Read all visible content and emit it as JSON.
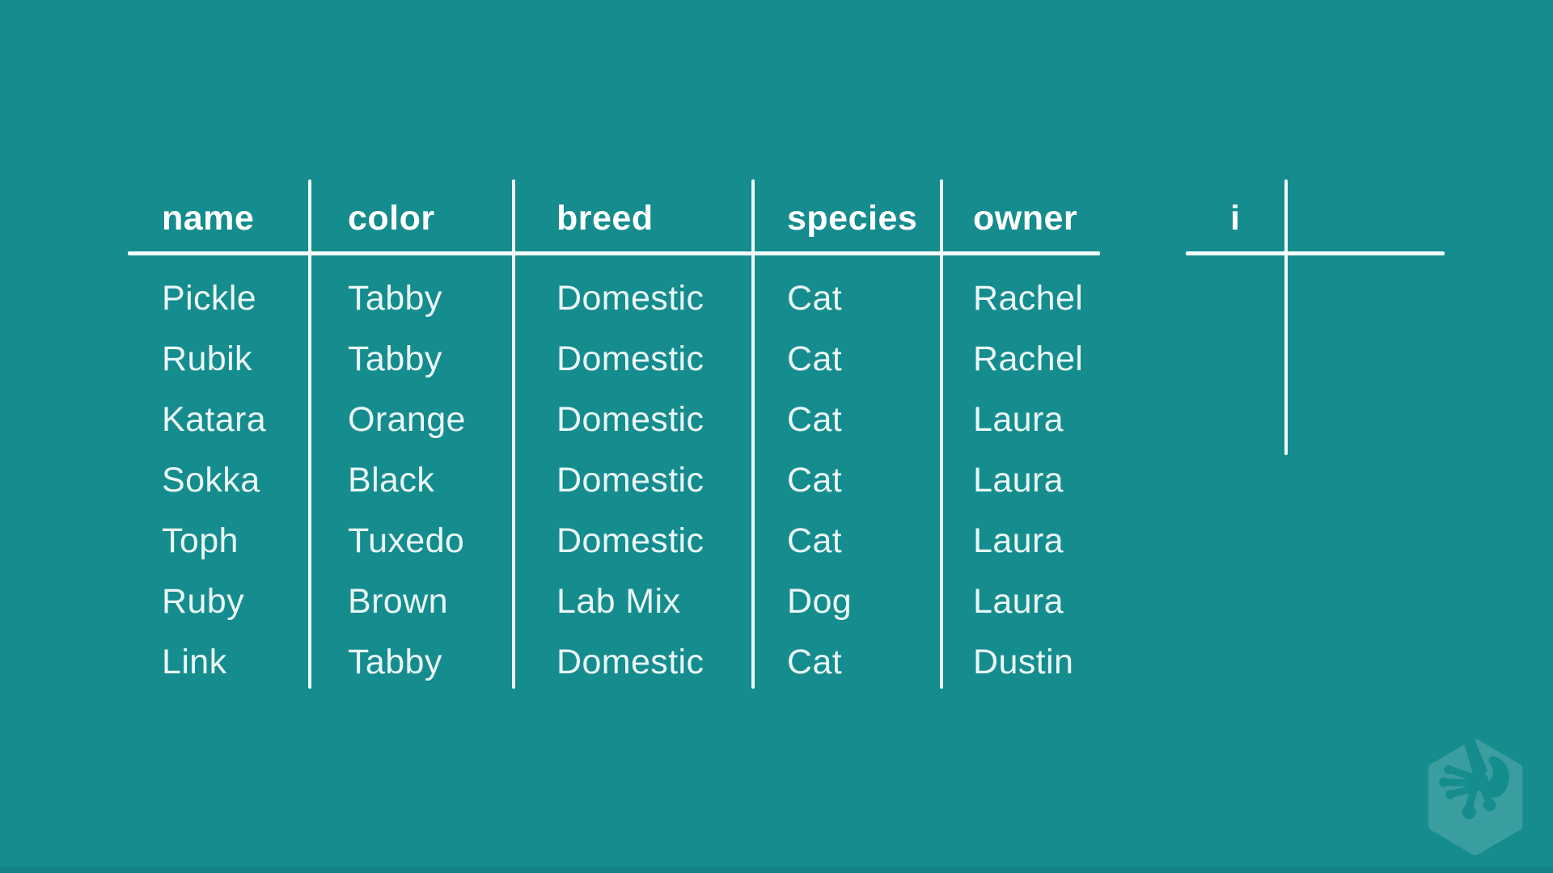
{
  "colors": {
    "background": "#158C8E",
    "line": "#F2FBFB",
    "header_text": "#FFFFFF",
    "cell_text": "#EAF7F6",
    "logo": "#3A9EA0"
  },
  "main_table": {
    "columns": [
      {
        "key": "name",
        "label": "name"
      },
      {
        "key": "color",
        "label": "color"
      },
      {
        "key": "breed",
        "label": "breed"
      },
      {
        "key": "species",
        "label": "species"
      },
      {
        "key": "owner",
        "label": "owner"
      }
    ],
    "rows": [
      {
        "name": "Pickle",
        "color": "Tabby",
        "breed": "Domestic",
        "species": "Cat",
        "owner": "Rachel"
      },
      {
        "name": "Rubik",
        "color": "Tabby",
        "breed": "Domestic",
        "species": "Cat",
        "owner": "Rachel"
      },
      {
        "name": "Katara",
        "color": "Orange",
        "breed": "Domestic",
        "species": "Cat",
        "owner": "Laura"
      },
      {
        "name": "Sokka",
        "color": "Black",
        "breed": "Domestic",
        "species": "Cat",
        "owner": "Laura"
      },
      {
        "name": "Toph",
        "color": "Tuxedo",
        "breed": "Domestic",
        "species": "Cat",
        "owner": "Laura"
      },
      {
        "name": "Ruby",
        "color": "Brown",
        "breed": "Lab Mix",
        "species": "Dog",
        "owner": "Laura"
      },
      {
        "name": "Link",
        "color": "Tabby",
        "breed": "Domestic",
        "species": "Cat",
        "owner": "Dustin"
      }
    ]
  },
  "i_table": {
    "header": "i"
  },
  "logo": {
    "name": "treehouse-logo"
  }
}
